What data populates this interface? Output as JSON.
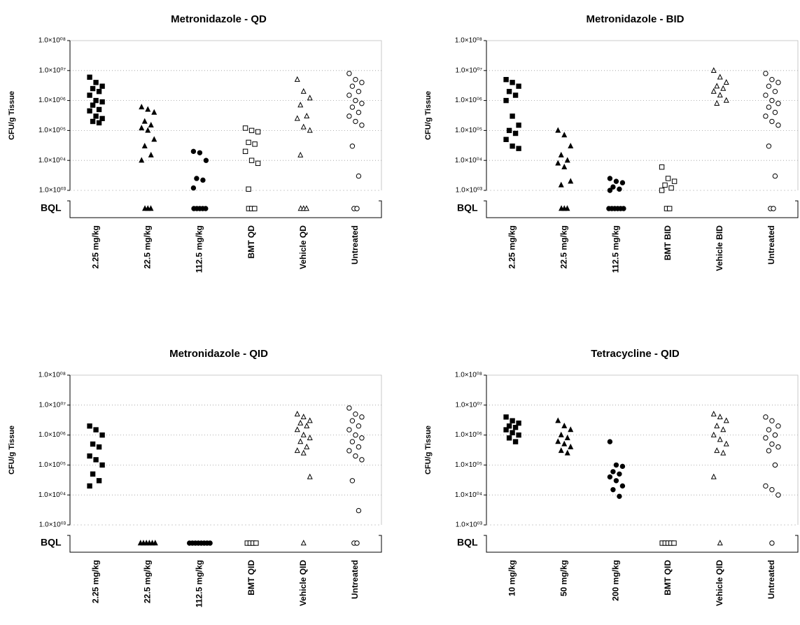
{
  "chart_data": [
    {
      "type": "scatter",
      "title": "Metronidazole - QD",
      "y_label": "CFU/g Tissue",
      "bql_label": "BQL",
      "log_scale": true,
      "grid": true,
      "color": "#000000",
      "ylim": [
        1000,
        100000000
      ],
      "yticks": [
        {
          "value": 1000,
          "label": "1.0×10⁰³"
        },
        {
          "value": 10000,
          "label": "1.0×10⁰⁴"
        },
        {
          "value": 100000,
          "label": "1.0×10⁰⁵"
        },
        {
          "value": 1000000,
          "label": "1.0×10⁰⁶"
        },
        {
          "value": 10000000,
          "label": "1.0×10⁰⁷"
        },
        {
          "value": 100000000,
          "label": "1.0×10⁰⁸"
        }
      ],
      "groups": [
        {
          "name": "2.25 mg/kg",
          "marker": "square",
          "filled": true,
          "values": [
            6000000.0,
            4000000.0,
            3000000.0,
            2500000.0,
            2000000.0,
            1500000.0,
            1000000.0,
            900000.0,
            700000.0,
            500000.0,
            450000.0,
            300000.0,
            250000.0,
            200000.0,
            180000.0
          ],
          "bql": 0
        },
        {
          "name": "22.5 mg/kg",
          "marker": "triangle",
          "filled": true,
          "values": [
            600000.0,
            500000.0,
            400000.0,
            200000.0,
            150000.0,
            120000.0,
            100000.0,
            50000.0,
            30000.0,
            15000.0,
            10000.0
          ],
          "bql": 3
        },
        {
          "name": "112.5 mg/kg",
          "marker": "circle",
          "filled": true,
          "values": [
            20000.0,
            18000.0,
            10000.0,
            2500.0,
            2200.0,
            1200.0
          ],
          "bql": 5
        },
        {
          "name": "BMT QD",
          "marker": "square",
          "filled": false,
          "values": [
            120000.0,
            100000.0,
            90000.0,
            40000.0,
            35000.0,
            20000.0,
            10000.0,
            8000.0,
            1100.0
          ],
          "bql": 3
        },
        {
          "name": "Vehicle QD",
          "marker": "triangle",
          "filled": false,
          "values": [
            5000000.0,
            2000000.0,
            1200000.0,
            700000.0,
            300000.0,
            250000.0,
            130000.0,
            100000.0,
            15000.0
          ],
          "bql": 3
        },
        {
          "name": "Untreated",
          "marker": "circle",
          "filled": false,
          "values": [
            8000000.0,
            5000000.0,
            4000000.0,
            3000000.0,
            2000000.0,
            1500000.0,
            1000000.0,
            800000.0,
            600000.0,
            400000.0,
            300000.0,
            200000.0,
            150000.0,
            30000.0,
            3000.0
          ],
          "bql": 2
        }
      ]
    },
    {
      "type": "scatter",
      "title": "Metronidazole - BID",
      "y_label": "CFU/g Tissue",
      "bql_label": "BQL",
      "log_scale": true,
      "grid": true,
      "color": "#000000",
      "ylim": [
        1000,
        100000000
      ],
      "yticks": [
        {
          "value": 1000,
          "label": "1.0×10⁰³"
        },
        {
          "value": 10000,
          "label": "1.0×10⁰⁴"
        },
        {
          "value": 100000,
          "label": "1.0×10⁰⁵"
        },
        {
          "value": 1000000,
          "label": "1.0×10⁰⁶"
        },
        {
          "value": 10000000,
          "label": "1.0×10⁰⁷"
        },
        {
          "value": 100000000,
          "label": "1.0×10⁰⁸"
        }
      ],
      "groups": [
        {
          "name": "2.25 mg/kg",
          "marker": "square",
          "filled": true,
          "values": [
            5000000.0,
            4000000.0,
            3000000.0,
            2000000.0,
            1500000.0,
            1000000.0,
            300000.0,
            150000.0,
            100000.0,
            80000.0,
            50000.0,
            30000.0,
            25000.0
          ],
          "bql": 0
        },
        {
          "name": "22.5 mg/kg",
          "marker": "triangle",
          "filled": true,
          "values": [
            100000.0,
            70000.0,
            30000.0,
            15000.0,
            10000.0,
            8000.0,
            6000.0,
            2000.0,
            1500.0
          ],
          "bql": 3
        },
        {
          "name": "112.5 mg/kg",
          "marker": "circle",
          "filled": true,
          "values": [
            2500.0,
            2000.0,
            1800.0,
            1300.0,
            1100.0,
            1000.0
          ],
          "bql": 6
        },
        {
          "name": "BMT BID",
          "marker": "square",
          "filled": false,
          "values": [
            6000.0,
            2500.0,
            2000.0,
            1500.0,
            1200.0,
            1000.0
          ],
          "bql": 2
        },
        {
          "name": "Vehicle BID",
          "marker": "triangle",
          "filled": false,
          "values": [
            10000000.0,
            6000000.0,
            4000000.0,
            3000000.0,
            2500000.0,
            2000000.0,
            1500000.0,
            1000000.0,
            800000.0
          ],
          "bql": 0
        },
        {
          "name": "Untreated",
          "marker": "circle",
          "filled": false,
          "values": [
            8000000.0,
            5000000.0,
            4000000.0,
            3000000.0,
            2000000.0,
            1500000.0,
            1000000.0,
            800000.0,
            600000.0,
            400000.0,
            300000.0,
            200000.0,
            150000.0,
            30000.0,
            3000.0
          ],
          "bql": 2
        }
      ]
    },
    {
      "type": "scatter",
      "title": "Metronidazole - QID",
      "y_label": "CFU/g Tissue",
      "bql_label": "BQL",
      "log_scale": true,
      "grid": true,
      "color": "#000000",
      "ylim": [
        1000,
        100000000
      ],
      "yticks": [
        {
          "value": 1000,
          "label": "1.0×10⁰³"
        },
        {
          "value": 10000,
          "label": "1.0×10⁰⁴"
        },
        {
          "value": 100000,
          "label": "1.0×10⁰⁵"
        },
        {
          "value": 1000000,
          "label": "1.0×10⁰⁶"
        },
        {
          "value": 10000000,
          "label": "1.0×10⁰⁷"
        },
        {
          "value": 100000000,
          "label": "1.0×10⁰⁸"
        }
      ],
      "groups": [
        {
          "name": "2.25 mg/kg",
          "marker": "square",
          "filled": true,
          "values": [
            2000000.0,
            1500000.0,
            1000000.0,
            500000.0,
            400000.0,
            200000.0,
            150000.0,
            100000.0,
            50000.0,
            30000.0,
            20000.0
          ],
          "bql": 0
        },
        {
          "name": "22.5 mg/kg",
          "marker": "triangle",
          "filled": true,
          "values": [],
          "bql": 6
        },
        {
          "name": "112.5 mg/kg",
          "marker": "circle",
          "filled": true,
          "values": [],
          "bql": 8
        },
        {
          "name": "BMT QID",
          "marker": "square",
          "filled": false,
          "values": [],
          "bql": 4
        },
        {
          "name": "Vehicle QID",
          "marker": "triangle",
          "filled": false,
          "values": [
            5000000.0,
            4000000.0,
            3000000.0,
            2500000.0,
            2000000.0,
            1500000.0,
            1000000.0,
            800000.0,
            600000.0,
            400000.0,
            300000.0,
            250000.0,
            40000.0
          ],
          "bql": 1
        },
        {
          "name": "Untreated",
          "marker": "circle",
          "filled": false,
          "values": [
            8000000.0,
            5000000.0,
            4000000.0,
            3000000.0,
            2000000.0,
            1500000.0,
            1000000.0,
            800000.0,
            600000.0,
            400000.0,
            300000.0,
            200000.0,
            150000.0,
            30000.0,
            3000.0
          ],
          "bql": 2
        }
      ]
    },
    {
      "type": "scatter",
      "title": "Tetracycline - QID",
      "y_label": "CFU/g Tissue",
      "bql_label": "BQL",
      "log_scale": true,
      "grid": true,
      "color": "#000000",
      "ylim": [
        1000,
        100000000
      ],
      "yticks": [
        {
          "value": 1000,
          "label": "1.0×10⁰³"
        },
        {
          "value": 10000,
          "label": "1.0×10⁰⁴"
        },
        {
          "value": 100000,
          "label": "1.0×10⁰⁵"
        },
        {
          "value": 1000000,
          "label": "1.0×10⁰⁶"
        },
        {
          "value": 10000000,
          "label": "1.0×10⁰⁷"
        },
        {
          "value": 100000000,
          "label": "1.0×10⁰⁸"
        }
      ],
      "groups": [
        {
          "name": "10 mg/kg",
          "marker": "square",
          "filled": true,
          "values": [
            4000000.0,
            3000000.0,
            2500000.0,
            2000000.0,
            1800000.0,
            1500000.0,
            1200000.0,
            1000000.0,
            800000.0,
            600000.0
          ],
          "bql": 0
        },
        {
          "name": "50 mg/kg",
          "marker": "triangle",
          "filled": true,
          "values": [
            3000000.0,
            2000000.0,
            1500000.0,
            1000000.0,
            800000.0,
            600000.0,
            500000.0,
            400000.0,
            300000.0,
            250000.0
          ],
          "bql": 0
        },
        {
          "name": "200 mg/kg",
          "marker": "circle",
          "filled": true,
          "values": [
            600000.0,
            100000.0,
            90000.0,
            60000.0,
            50000.0,
            40000.0,
            30000.0,
            20000.0,
            15000.0,
            9000.0
          ],
          "bql": 0
        },
        {
          "name": "BMT QID",
          "marker": "square",
          "filled": false,
          "values": [],
          "bql": 5
        },
        {
          "name": "Vehicle QID",
          "marker": "triangle",
          "filled": false,
          "values": [
            5000000.0,
            4000000.0,
            3000000.0,
            2000000.0,
            1500000.0,
            1000000.0,
            700000.0,
            500000.0,
            300000.0,
            250000.0,
            40000.0
          ],
          "bql": 1
        },
        {
          "name": "Untreated",
          "marker": "circle",
          "filled": false,
          "values": [
            4000000.0,
            3000000.0,
            2000000.0,
            1500000.0,
            1000000.0,
            800000.0,
            500000.0,
            400000.0,
            300000.0,
            100000.0,
            20000.0,
            15000.0,
            10000.0
          ],
          "bql": 1
        }
      ]
    }
  ]
}
